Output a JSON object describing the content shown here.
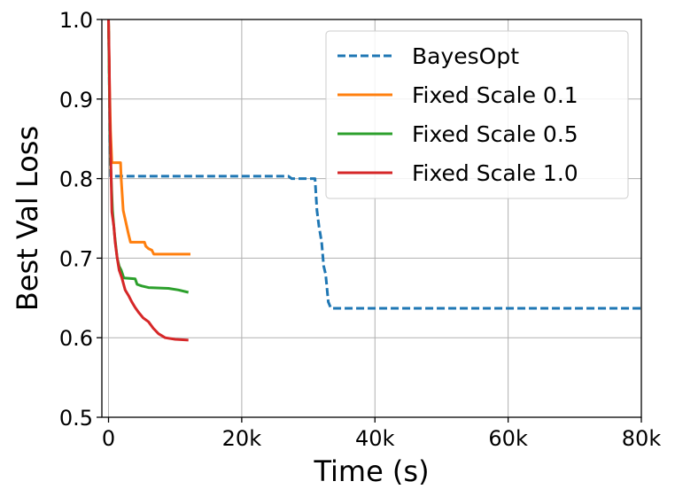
{
  "chart_data": {
    "type": "line",
    "xlabel": "Time (s)",
    "ylabel": "Best Val Loss",
    "xlim": [
      -1000,
      80000
    ],
    "ylim": [
      0.5,
      1.0
    ],
    "x_ticks": [
      0,
      20000,
      40000,
      60000,
      80000
    ],
    "x_tick_labels": [
      "0",
      "20k",
      "40k",
      "60k",
      "80k"
    ],
    "y_ticks": [
      0.5,
      0.6,
      0.7,
      0.8,
      0.9,
      1.0
    ],
    "y_tick_labels": [
      "0.5",
      "0.6",
      "0.7",
      "0.8",
      "0.9",
      "1.0"
    ],
    "grid": true,
    "legend_position": "top-right",
    "series": [
      {
        "name": "BayesOpt",
        "color": "#1f77b4",
        "dash": "dashed",
        "points": [
          [
            0,
            1.0
          ],
          [
            100,
            0.93
          ],
          [
            200,
            0.86
          ],
          [
            300,
            0.803
          ],
          [
            27000,
            0.803
          ],
          [
            27500,
            0.8
          ],
          [
            31000,
            0.8
          ],
          [
            31300,
            0.76
          ],
          [
            31600,
            0.74
          ],
          [
            32000,
            0.72
          ],
          [
            32300,
            0.69
          ],
          [
            32600,
            0.68
          ],
          [
            33000,
            0.645
          ],
          [
            33400,
            0.637
          ],
          [
            80000,
            0.637
          ]
        ]
      },
      {
        "name": "Fixed Scale 0.1",
        "color": "#ff7f0e",
        "dash": "solid",
        "points": [
          [
            0,
            1.0
          ],
          [
            150,
            0.92
          ],
          [
            300,
            0.86
          ],
          [
            500,
            0.82
          ],
          [
            1800,
            0.82
          ],
          [
            1900,
            0.8
          ],
          [
            2200,
            0.76
          ],
          [
            2600,
            0.745
          ],
          [
            3000,
            0.73
          ],
          [
            3300,
            0.72
          ],
          [
            5400,
            0.72
          ],
          [
            5600,
            0.715
          ],
          [
            6000,
            0.712
          ],
          [
            6500,
            0.71
          ],
          [
            6800,
            0.705
          ],
          [
            12300,
            0.705
          ]
        ]
      },
      {
        "name": "Fixed Scale 0.5",
        "color": "#2ca02c",
        "dash": "solid",
        "points": [
          [
            0,
            1.0
          ],
          [
            150,
            0.9
          ],
          [
            300,
            0.82
          ],
          [
            600,
            0.76
          ],
          [
            900,
            0.73
          ],
          [
            1300,
            0.7
          ],
          [
            1600,
            0.69
          ],
          [
            1900,
            0.685
          ],
          [
            2300,
            0.675
          ],
          [
            4000,
            0.674
          ],
          [
            4300,
            0.667
          ],
          [
            5000,
            0.665
          ],
          [
            6000,
            0.663
          ],
          [
            9000,
            0.662
          ],
          [
            10500,
            0.66
          ],
          [
            12000,
            0.657
          ]
        ]
      },
      {
        "name": "Fixed Scale 1.0",
        "color": "#d62728",
        "dash": "solid",
        "points": [
          [
            0,
            1.0
          ],
          [
            100,
            0.95
          ],
          [
            200,
            0.88
          ],
          [
            300,
            0.84
          ],
          [
            450,
            0.78
          ],
          [
            500,
            0.758
          ],
          [
            800,
            0.74
          ],
          [
            1000,
            0.72
          ],
          [
            1300,
            0.7
          ],
          [
            1600,
            0.685
          ],
          [
            2000,
            0.675
          ],
          [
            2500,
            0.66
          ],
          [
            3000,
            0.653
          ],
          [
            3500,
            0.645
          ],
          [
            4000,
            0.638
          ],
          [
            4500,
            0.632
          ],
          [
            5200,
            0.625
          ],
          [
            6000,
            0.62
          ],
          [
            6700,
            0.612
          ],
          [
            7500,
            0.605
          ],
          [
            8500,
            0.6
          ],
          [
            10000,
            0.598
          ],
          [
            12000,
            0.597
          ]
        ]
      }
    ]
  }
}
